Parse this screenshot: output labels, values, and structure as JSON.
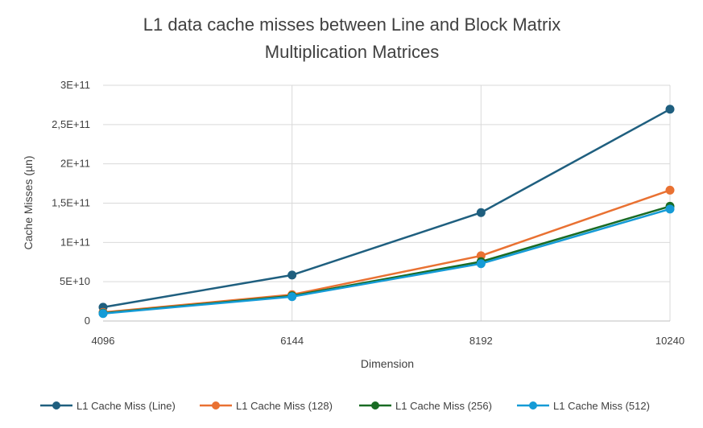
{
  "chart_data": {
    "type": "line",
    "title_lines": [
      "L1 data cache misses between Line and Block Matrix",
      "Multiplication Matrices"
    ],
    "xlabel": "Dimension",
    "ylabel": "Cache Misses (µn)",
    "categories": [
      "4096",
      "6144",
      "8192",
      "10240"
    ],
    "y_ticks": [
      {
        "value": 0,
        "label": "0"
      },
      {
        "value": 50000000000,
        "label": "5E+10"
      },
      {
        "value": 100000000000,
        "label": "1E+11"
      },
      {
        "value": 150000000000,
        "label": "1,5E+11"
      },
      {
        "value": 200000000000,
        "label": "2E+11"
      },
      {
        "value": 250000000000,
        "label": "2,5E+11"
      },
      {
        "value": 300000000000,
        "label": "3E+11"
      }
    ],
    "ylim": [
      0,
      300000000000
    ],
    "grid": true,
    "legend_position": "bottom",
    "series": [
      {
        "name": "L1 Cache Miss (Line)",
        "color": "#1f5f7f",
        "values": [
          17500000000,
          58500000000,
          138000000000,
          269500000000
        ]
      },
      {
        "name": "L1 Cache Miss (128)",
        "color": "#e97132",
        "values": [
          11000000000,
          33500000000,
          83000000000,
          166500000000
        ]
      },
      {
        "name": "L1 Cache Miss (256)",
        "color": "#196b24",
        "values": [
          10000000000,
          32000000000,
          75500000000,
          146000000000
        ]
      },
      {
        "name": "L1 Cache Miss (512)",
        "color": "#159bd6",
        "values": [
          9500000000,
          31000000000,
          73000000000,
          142500000000
        ]
      }
    ]
  }
}
